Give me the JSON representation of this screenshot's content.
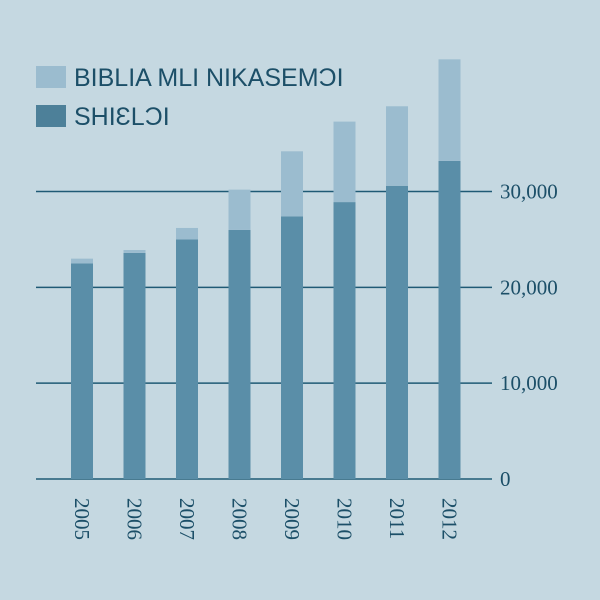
{
  "chart_data": {
    "type": "bar",
    "stacked": true,
    "title": "",
    "xlabel": "",
    "ylabel": "",
    "categories": [
      "2005",
      "2006",
      "2007",
      "2008",
      "2009",
      "2010",
      "2011",
      "2012"
    ],
    "series": [
      {
        "name": "SHIƐLƆI",
        "color": "#5a8ea8",
        "values": [
          22500,
          23600,
          25000,
          26000,
          27400,
          28900,
          30600,
          33200
        ]
      },
      {
        "name": "BIBLIA MLI NIKASEMƆI",
        "color": "#9bbccf",
        "values": [
          500,
          300,
          1200,
          4200,
          6800,
          8400,
          8300,
          10600
        ]
      }
    ],
    "ylim": [
      0,
      43000
    ],
    "yticks": [
      0,
      10000,
      20000,
      30000
    ],
    "ytick_labels": [
      "0",
      "10,000",
      "20,000",
      "30,000"
    ],
    "grid": true,
    "legend_position": "top-left",
    "y_axis_position": "right",
    "colors": {
      "background": "#c5d8e1",
      "gridline": "#1f5a75",
      "text": "#1c4f68"
    }
  }
}
